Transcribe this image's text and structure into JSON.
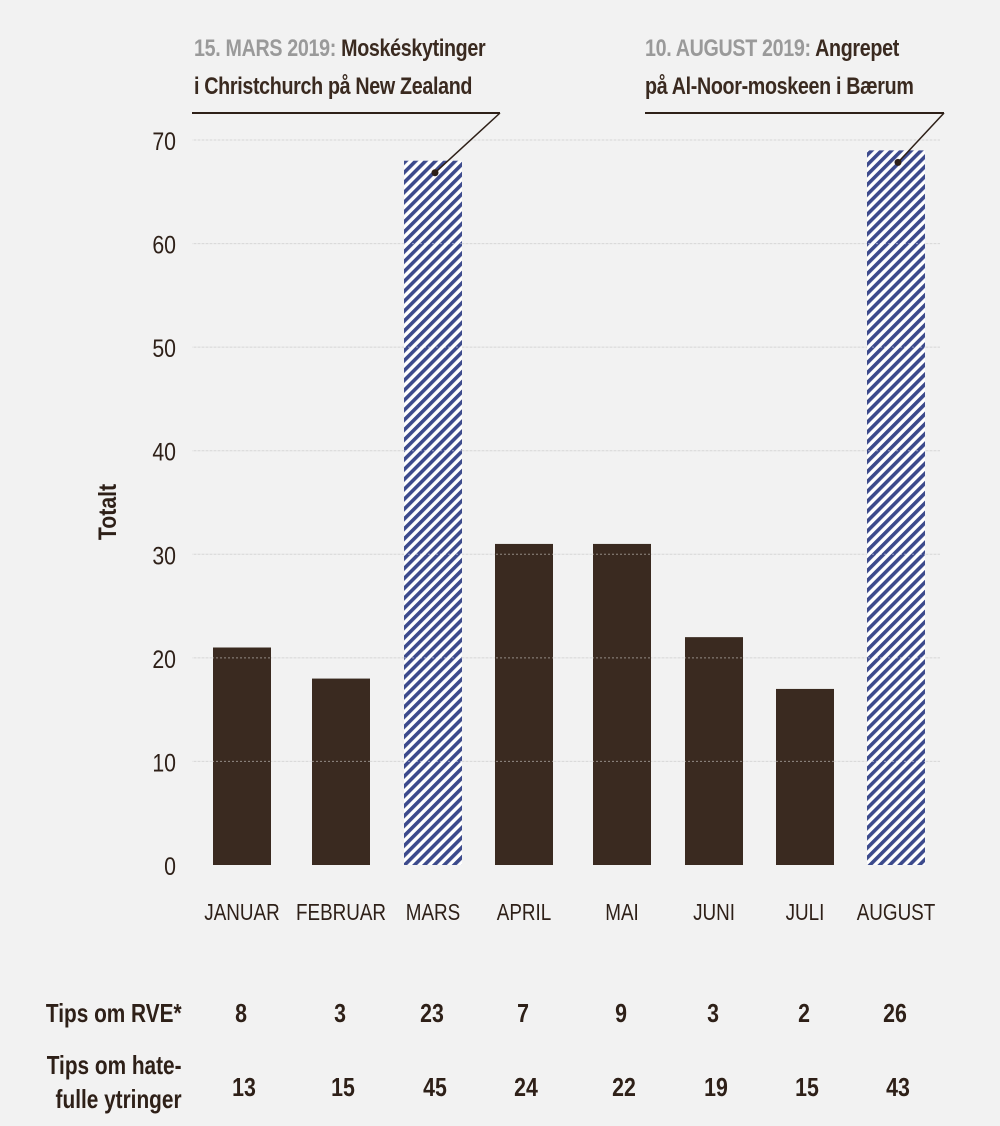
{
  "colors": {
    "background": "#f2f2f2",
    "bar": "#3a2a20",
    "highlight": "#3c4a8c",
    "grid": "#d6d6d6",
    "annotation_date": "#9a9a9a"
  },
  "chart_data": {
    "type": "bar",
    "ylabel": "Totalt",
    "ylim": [
      0,
      70
    ],
    "yticks": [
      "0",
      "10",
      "20",
      "30",
      "40",
      "50",
      "60",
      "70"
    ],
    "grid": true,
    "categories": [
      "JANUAR",
      "FEBRUAR",
      "MARS",
      "APRIL",
      "MAI",
      "JUNI",
      "JULI",
      "AUGUST"
    ],
    "values": [
      21,
      18,
      68,
      31,
      31,
      22,
      17,
      69
    ],
    "highlighted": [
      "MARS",
      "AUGUST"
    ],
    "annotations": [
      {
        "category": "MARS",
        "date": "15. MARS 2019:",
        "line1": "Moskéskytinger",
        "line2": "i Christchurch på New Zealand"
      },
      {
        "category": "AUGUST",
        "date": "10. AUGUST 2019:",
        "line1": "Angrepet",
        "line2": "på Al-Noor-moskeen i Bærum"
      }
    ]
  },
  "table": {
    "rve_label": "Tips om RVE*",
    "rve_values": [
      "8",
      "3",
      "23",
      "7",
      "9",
      "3",
      "2",
      "26"
    ],
    "hate_label_line1": "Tips om hate-",
    "hate_label_line2": "fulle ytringer",
    "hate_values": [
      "13",
      "15",
      "45",
      "24",
      "22",
      "19",
      "15",
      "43"
    ]
  }
}
